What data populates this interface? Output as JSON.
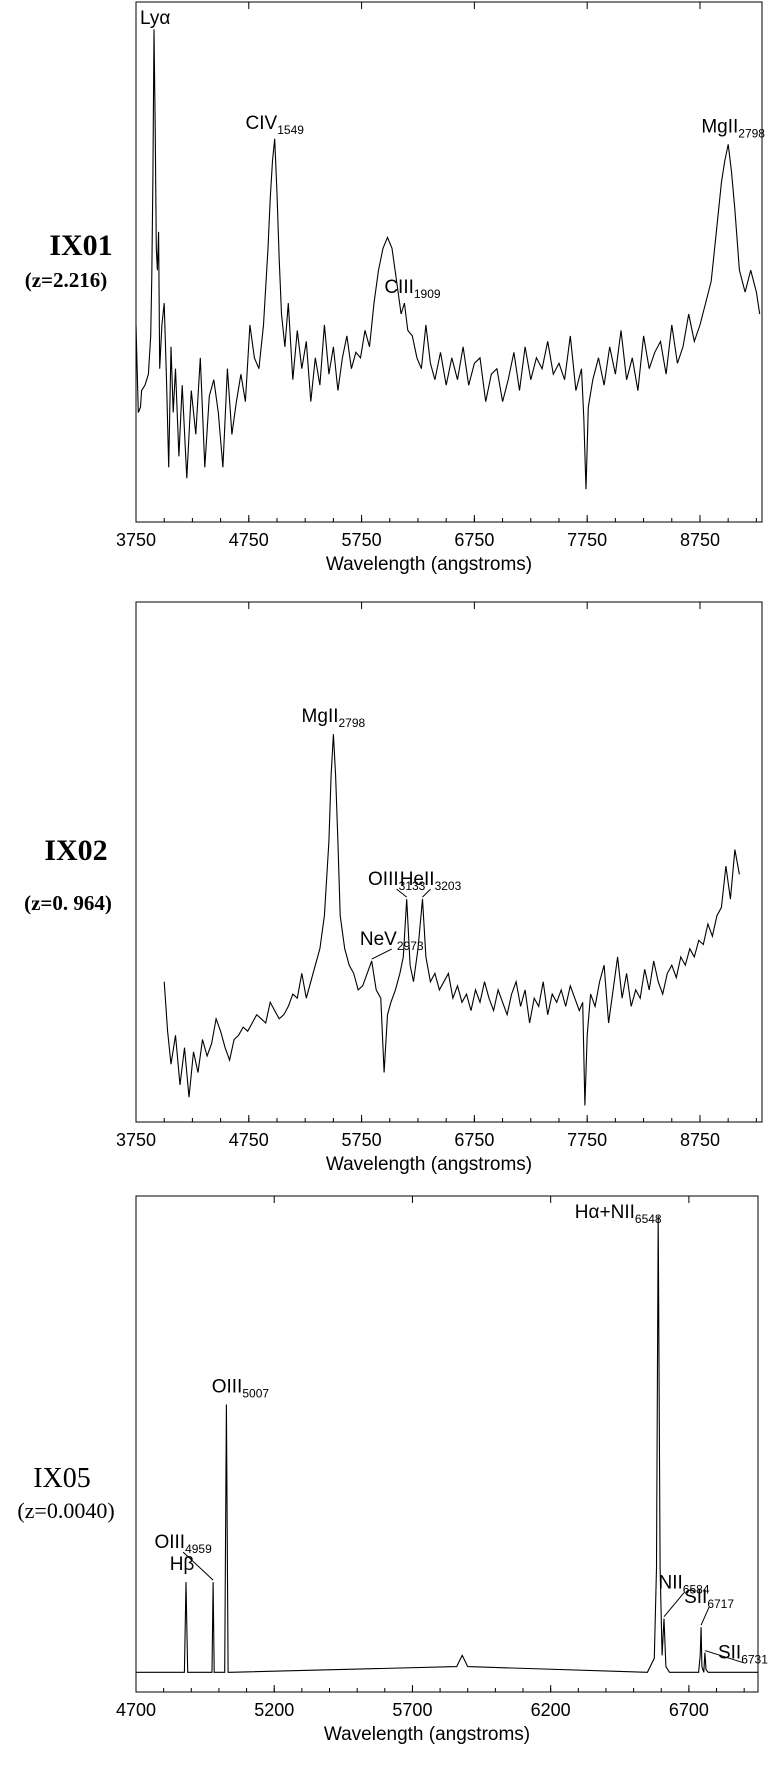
{
  "chart_data": [
    {
      "type": "line",
      "object": "IX01",
      "redshift": "(z=2.216)",
      "xlabel": "Wavelength (angstroms)",
      "ylabel": "",
      "xlim": [
        3750,
        9300
      ],
      "xticks": [
        "3750",
        "4750",
        "5750",
        "6750",
        "7750",
        "8750"
      ],
      "lines": [
        {
          "name": "Lyα",
          "sub": "",
          "x": 3920
        },
        {
          "name": "CIV",
          "sub": "1549",
          "x": 4980
        },
        {
          "name": "CIII",
          "sub": "1909",
          "x": 6130
        },
        {
          "name": "MgII",
          "sub": "2798",
          "x": 9000
        }
      ],
      "series": [
        {
          "x": [
            3750,
            3770,
            3790,
            3800,
            3830,
            3860,
            3880,
            3890,
            3900,
            3910,
            3920,
            3930,
            3940,
            3950,
            3960,
            3980,
            4000,
            4020,
            4040,
            4060,
            4080,
            4100,
            4130,
            4160,
            4200,
            4240,
            4280,
            4320,
            4360,
            4400,
            4440,
            4480,
            4520,
            4560,
            4600,
            4640,
            4680,
            4720,
            4760,
            4800,
            4840,
            4880,
            4920,
            4940,
            4960,
            4980,
            5000,
            5020,
            5040,
            5070,
            5100,
            5140,
            5180,
            5220,
            5260,
            5300,
            5340,
            5380,
            5420,
            5460,
            5500,
            5540,
            5580,
            5620,
            5660,
            5700,
            5740,
            5780,
            5820,
            5860,
            5900,
            5940,
            5980,
            6020,
            6060,
            6100,
            6130,
            6160,
            6200,
            6240,
            6280,
            6320,
            6360,
            6400,
            6450,
            6500,
            6550,
            6600,
            6650,
            6700,
            6750,
            6800,
            6850,
            6900,
            6950,
            7000,
            7050,
            7100,
            7150,
            7200,
            7250,
            7300,
            7350,
            7400,
            7450,
            7500,
            7550,
            7600,
            7650,
            7700,
            7720,
            7740,
            7760,
            7800,
            7850,
            7900,
            7950,
            8000,
            8050,
            8100,
            8150,
            8200,
            8250,
            8300,
            8350,
            8400,
            8450,
            8500,
            8550,
            8600,
            8650,
            8700,
            8750,
            8800,
            8850,
            8900,
            8940,
            8970,
            9000,
            9030,
            9060,
            9100,
            9150,
            9200,
            9250,
            9280
          ],
          "y": [
            3.6,
            2.0,
            2.1,
            2.4,
            2.5,
            2.7,
            3.4,
            4.5,
            6.3,
            9.0,
            7.2,
            5.0,
            4.6,
            5.3,
            2.8,
            3.6,
            4.0,
            2.6,
            1.0,
            3.2,
            2.0,
            2.8,
            1.2,
            2.5,
            0.8,
            2.4,
            1.6,
            3.0,
            1.0,
            2.3,
            2.6,
            2.0,
            1.0,
            2.8,
            1.6,
            2.2,
            2.7,
            2.2,
            3.6,
            3.0,
            2.8,
            3.6,
            5.0,
            5.9,
            6.6,
            7.0,
            6.0,
            4.8,
            3.8,
            3.2,
            4.0,
            2.6,
            3.5,
            2.8,
            3.3,
            2.2,
            3.0,
            2.5,
            3.6,
            2.7,
            3.2,
            2.4,
            3.0,
            3.4,
            2.8,
            3.1,
            3.0,
            3.5,
            3.2,
            4.0,
            4.6,
            5.0,
            5.2,
            5.0,
            4.4,
            3.8,
            4.0,
            3.5,
            3.4,
            3.0,
            2.8,
            3.6,
            2.9,
            2.6,
            3.1,
            2.5,
            3.0,
            2.6,
            3.2,
            2.5,
            2.9,
            3.0,
            2.2,
            2.7,
            2.8,
            2.2,
            2.6,
            3.1,
            2.4,
            3.2,
            2.6,
            3.0,
            2.8,
            3.3,
            2.7,
            2.9,
            2.6,
            3.4,
            2.4,
            2.8,
            1.9,
            0.6,
            2.1,
            2.6,
            3.0,
            2.5,
            3.2,
            2.7,
            3.5,
            2.6,
            3.0,
            2.4,
            3.4,
            2.8,
            3.1,
            3.3,
            2.7,
            3.6,
            2.9,
            3.2,
            3.8,
            3.3,
            3.6,
            4.0,
            4.4,
            5.4,
            6.2,
            6.6,
            6.9,
            6.4,
            5.7,
            4.6,
            4.2,
            4.6,
            4.2,
            3.8
          ]
        }
      ]
    },
    {
      "type": "line",
      "object": "IX02",
      "redshift": "(z=0. 964)",
      "xlabel": "Wavelength (angstroms)",
      "ylabel": "",
      "xlim": [
        3750,
        9300
      ],
      "xticks": [
        "3750",
        "4750",
        "5750",
        "6750",
        "7750",
        "8750"
      ],
      "lines": [
        {
          "name": "MgII",
          "sub": "2798",
          "x": 5500
        },
        {
          "name": "NeV",
          "sub": "2973",
          "x": 5840
        },
        {
          "name": "OIII",
          "sub": "3133",
          "x": 6150
        },
        {
          "name": "HeII",
          "sub": "3203",
          "x": 6290
        }
      ],
      "series": [
        {
          "x": [
            4000,
            4030,
            4060,
            4100,
            4140,
            4180,
            4220,
            4260,
            4300,
            4340,
            4380,
            4420,
            4460,
            4500,
            4540,
            4580,
            4620,
            4660,
            4700,
            4740,
            4780,
            4820,
            4860,
            4900,
            4940,
            4980,
            5020,
            5060,
            5100,
            5140,
            5180,
            5220,
            5260,
            5300,
            5340,
            5380,
            5420,
            5460,
            5480,
            5500,
            5520,
            5540,
            5560,
            5600,
            5640,
            5680,
            5720,
            5760,
            5800,
            5840,
            5880,
            5920,
            5950,
            5980,
            6010,
            6050,
            6090,
            6120,
            6150,
            6180,
            6210,
            6250,
            6290,
            6320,
            6360,
            6400,
            6440,
            6480,
            6520,
            6560,
            6600,
            6640,
            6680,
            6720,
            6760,
            6800,
            6840,
            6880,
            6920,
            6960,
            7000,
            7040,
            7080,
            7120,
            7160,
            7200,
            7240,
            7280,
            7320,
            7360,
            7400,
            7440,
            7480,
            7520,
            7560,
            7600,
            7640,
            7680,
            7710,
            7730,
            7750,
            7780,
            7820,
            7860,
            7900,
            7940,
            7980,
            8020,
            8060,
            8100,
            8140,
            8180,
            8220,
            8260,
            8300,
            8340,
            8380,
            8420,
            8460,
            8500,
            8540,
            8580,
            8620,
            8660,
            8700,
            8740,
            8780,
            8820,
            8860,
            8900,
            8940,
            8980,
            9020,
            9060,
            9100
          ],
          "y": [
            2.8,
            1.6,
            0.8,
            1.5,
            0.3,
            1.2,
            0.0,
            1.1,
            0.6,
            1.4,
            1.0,
            1.3,
            1.9,
            1.6,
            1.2,
            0.9,
            1.4,
            1.5,
            1.7,
            1.6,
            1.8,
            2.0,
            1.9,
            1.8,
            2.3,
            2.1,
            1.9,
            2.0,
            2.2,
            2.5,
            2.4,
            3.0,
            2.4,
            2.8,
            3.2,
            3.6,
            4.4,
            6.2,
            7.8,
            8.8,
            7.8,
            6.2,
            4.4,
            3.6,
            3.2,
            3.0,
            2.6,
            2.7,
            3.0,
            3.3,
            2.6,
            2.4,
            0.6,
            2.0,
            2.3,
            2.6,
            3.0,
            3.4,
            4.8,
            3.2,
            2.8,
            3.6,
            4.8,
            3.4,
            2.8,
            3.0,
            2.6,
            2.8,
            3.0,
            2.4,
            2.7,
            2.3,
            2.5,
            2.1,
            2.6,
            2.3,
            2.8,
            2.4,
            2.1,
            2.6,
            2.3,
            2.0,
            2.5,
            2.8,
            2.2,
            2.6,
            1.8,
            2.4,
            2.2,
            2.8,
            2.0,
            2.5,
            2.3,
            2.6,
            2.2,
            2.7,
            2.4,
            2.1,
            2.3,
            -0.2,
            1.5,
            2.5,
            2.2,
            2.8,
            3.2,
            1.8,
            2.6,
            3.4,
            2.4,
            3.0,
            2.2,
            2.6,
            2.4,
            3.1,
            2.6,
            3.3,
            2.8,
            2.5,
            3.0,
            3.2,
            2.9,
            3.4,
            3.2,
            3.6,
            3.4,
            3.8,
            3.7,
            4.2,
            3.9,
            4.4,
            4.6,
            5.6,
            4.8,
            6.0,
            5.4
          ]
        }
      ]
    },
    {
      "type": "line",
      "object": "IX05",
      "redshift": "(z=0.0040)",
      "xlabel": "Wavelength (angstroms)",
      "ylabel": "",
      "xlim": [
        4700,
        6950
      ],
      "xticks": [
        "4700",
        "5200",
        "5700",
        "6200",
        "6700"
      ],
      "lines": [
        {
          "name": "Hβ",
          "sub": "",
          "x": 4881
        },
        {
          "name": "OIII",
          "sub": "4959",
          "x": 4979
        },
        {
          "name": "OIII",
          "sub": "5007",
          "x": 5027
        },
        {
          "name": "Hα+NII",
          "sub": "6548",
          "x": 6589
        },
        {
          "name": "NII",
          "sub": "6584",
          "x": 6610
        },
        {
          "name": "SII",
          "sub": "6717",
          "x": 6744
        },
        {
          "name": "SII",
          "sub": "6731",
          "x": 6758
        }
      ],
      "series": [
        {
          "x": [
            4700,
            4860,
            4875,
            4881,
            4887,
            4900,
            4970,
            4975,
            4979,
            4983,
            4990,
            5015,
            5021,
            5027,
            5033,
            5040,
            5860,
            5870,
            5880,
            5890,
            5900,
            6550,
            6575,
            6583,
            6589,
            6596,
            6603,
            6610,
            6617,
            6630,
            6735,
            6741,
            6744,
            6747,
            6754,
            6758,
            6762,
            6770,
            6950
          ],
          "y": [
            0.3,
            0.3,
            0.3,
            3.5,
            0.3,
            0.3,
            0.3,
            0.3,
            3.5,
            0.3,
            0.3,
            0.3,
            0.3,
            9.8,
            0.3,
            0.3,
            0.5,
            0.7,
            0.9,
            0.7,
            0.5,
            0.3,
            0.8,
            4,
            16.5,
            4,
            0.9,
            2.2,
            0.5,
            0.3,
            0.3,
            0.9,
            1.9,
            0.5,
            0.3,
            1.0,
            0.4,
            0.3,
            0.3
          ]
        }
      ]
    }
  ]
}
